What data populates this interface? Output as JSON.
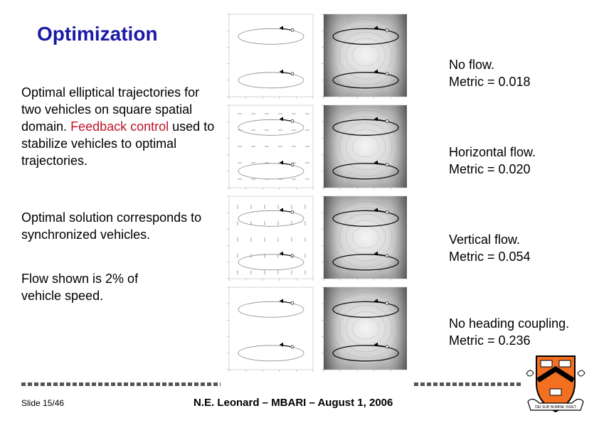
{
  "slide": {
    "title": "Optimization",
    "para1_prefix": "Optimal elliptical trajectories for two vehicles on square spatial domain.",
    "para1_red": "Feedback control",
    "para1_suffix": "used to stabilize vehicles to optimal trajectories.",
    "para2": "Optimal solution corresponds to synchronized vehicles.",
    "para3": "Flow shown is 2% of vehicle speed.",
    "captions": [
      {
        "line1": "No flow.",
        "line2": "Metric = 0.018"
      },
      {
        "line1": "Horizontal flow.",
        "line2": "Metric = 0.020"
      },
      {
        "line1": "Vertical flow.",
        "line2": "Metric = 0.054"
      },
      {
        "line1": "No heading coupling.",
        "line2": "Metric = 0.236"
      }
    ],
    "footer_left": "Slide 15/46",
    "footer_center": "N.E. Leonard – MBARI – August 1, 2006",
    "logo_text": "DEI SUB NUMINE VIGET",
    "colors": {
      "title": "#1a1aa6",
      "highlight": "#c0142a",
      "shield": "#f37021"
    }
  }
}
